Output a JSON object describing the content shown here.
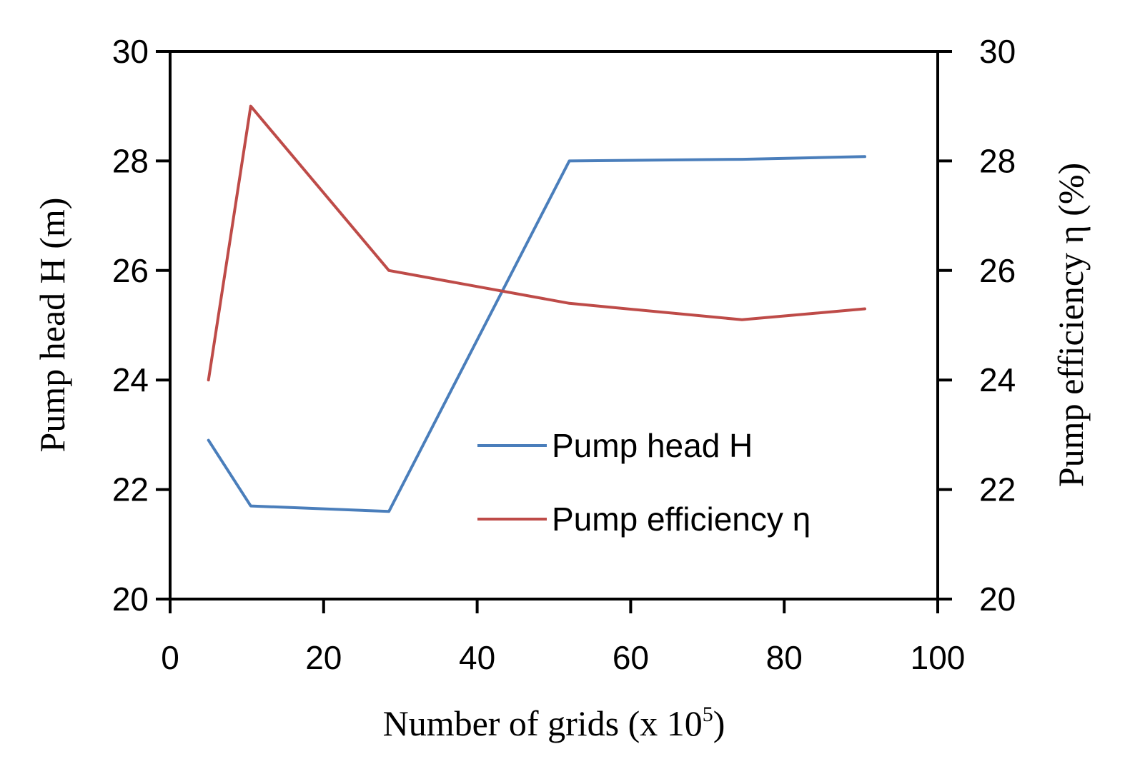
{
  "chart_data": {
    "type": "line",
    "title": "",
    "xlabel": "Number of grids (x 10",
    "xlabel_superscript": "5",
    "xlabel_suffix": ")",
    "ylabel_left": "Pump head H (m)",
    "ylabel_right": "Pump efficiency η (%)",
    "xlim": [
      0,
      100
    ],
    "ylim_left": [
      20,
      30
    ],
    "ylim_right": [
      20,
      30
    ],
    "x_ticks": [
      "0",
      "20",
      "40",
      "60",
      "80",
      "100"
    ],
    "x_tick_values": [
      0,
      20,
      40,
      60,
      80,
      100
    ],
    "y_left_ticks": [
      "20",
      "22",
      "24",
      "26",
      "28",
      "30"
    ],
    "y_left_tick_values": [
      20,
      22,
      24,
      26,
      28,
      30
    ],
    "y_right_ticks": [
      "20",
      "22",
      "24",
      "26",
      "28",
      "30"
    ],
    "y_right_tick_values": [
      20,
      22,
      24,
      26,
      28,
      30
    ],
    "grid": false,
    "legend_position": "center-right",
    "series": [
      {
        "name": "Pump head H",
        "axis": "left",
        "color": "#4a7ebb",
        "x": [
          5,
          10.5,
          28.5,
          52,
          74.5,
          90.5
        ],
        "values": [
          22.9,
          21.7,
          21.6,
          28.0,
          28.03,
          28.08
        ]
      },
      {
        "name": "Pump efficiency η",
        "axis": "right",
        "color": "#be4b48",
        "x": [
          5,
          10.5,
          28.5,
          52,
          74.5,
          90.5
        ],
        "values": [
          24.0,
          29.0,
          26.0,
          25.4,
          25.1,
          25.3
        ]
      }
    ]
  }
}
